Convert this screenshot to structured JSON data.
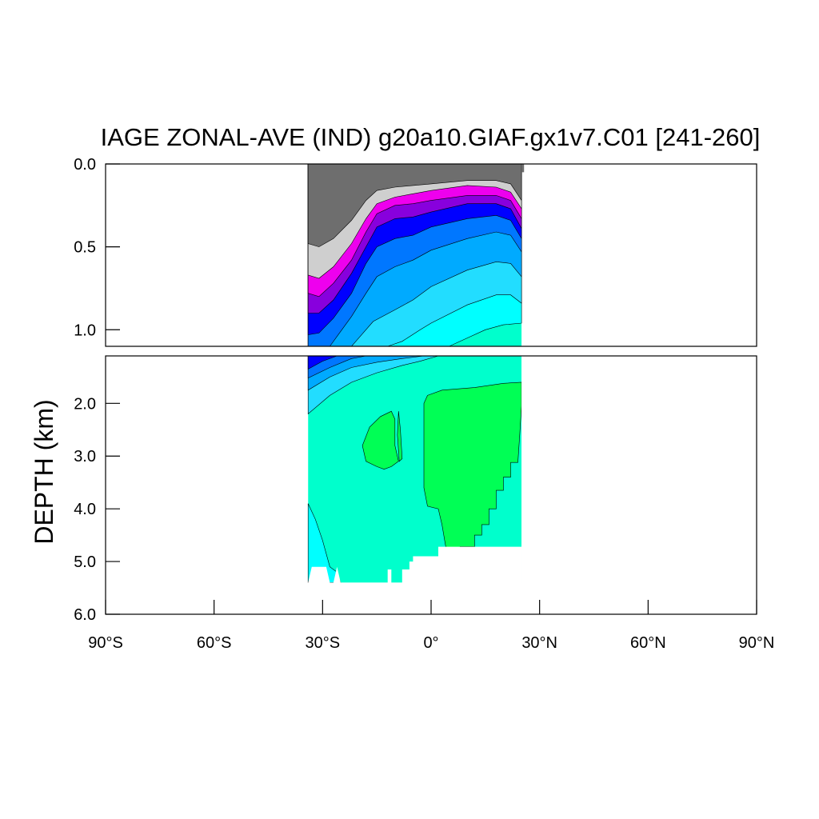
{
  "chart_data": {
    "type": "contour",
    "title": "IAGE ZONAL-AVE (IND) g20a10.GIAF.gx1v7.C01 [241-260]",
    "ylabel": "DEPTH (km)",
    "xlabel": "",
    "xlim": [
      -90,
      90
    ],
    "ylim_top_panel": [
      0.0,
      1.1
    ],
    "ylim_bottom_panel": [
      1.1,
      6.0
    ],
    "y_inverted": true,
    "x_ticks": [
      {
        "value": -90,
        "label": "90°S"
      },
      {
        "value": -60,
        "label": "60°S"
      },
      {
        "value": -30,
        "label": "30°S"
      },
      {
        "value": 0,
        "label": "0°"
      },
      {
        "value": 30,
        "label": "30°N"
      },
      {
        "value": 60,
        "label": "60°N"
      },
      {
        "value": 90,
        "label": "90°N"
      }
    ],
    "y_ticks_top": [
      {
        "value": 0.0,
        "label": "0.0"
      },
      {
        "value": 0.5,
        "label": "0.5"
      },
      {
        "value": 1.0,
        "label": "1.0"
      }
    ],
    "y_ticks_bottom": [
      {
        "value": 2.0,
        "label": "2.0"
      },
      {
        "value": 3.0,
        "label": "3.0"
      },
      {
        "value": 4.0,
        "label": "4.0"
      },
      {
        "value": 5.0,
        "label": "5.0"
      },
      {
        "value": 6.0,
        "label": "6.0"
      }
    ],
    "data_extent_lat": [
      -34,
      25
    ],
    "colors": {
      "level_1": "#6e6e6e",
      "level_2": "#cfcfcf",
      "level_3": "#ee00ee",
      "level_4": "#8800dd",
      "level_5": "#0000ff",
      "level_6": "#0077ff",
      "level_7": "#00aaff",
      "level_8": "#22ddff",
      "level_9": "#00ffff",
      "level_10": "#00ffcc",
      "level_11": "#00ff55"
    },
    "top_bands": [
      {
        "level": "level_1",
        "boundary": [
          [
            -34,
            0.48
          ],
          [
            -31,
            0.5
          ],
          [
            -27,
            0.45
          ],
          [
            -22,
            0.34
          ],
          [
            -18,
            0.22
          ],
          [
            -15,
            0.16
          ],
          [
            -10,
            0.14
          ],
          [
            -5,
            0.13
          ],
          [
            0,
            0.12
          ],
          [
            10,
            0.1
          ],
          [
            18,
            0.1
          ],
          [
            22,
            0.12
          ],
          [
            25,
            0.22
          ]
        ]
      },
      {
        "level": "level_2",
        "boundary": [
          [
            -34,
            0.67
          ],
          [
            -31,
            0.69
          ],
          [
            -27,
            0.62
          ],
          [
            -22,
            0.48
          ],
          [
            -18,
            0.33
          ],
          [
            -15,
            0.24
          ],
          [
            -10,
            0.2
          ],
          [
            -5,
            0.18
          ],
          [
            0,
            0.16
          ],
          [
            10,
            0.13
          ],
          [
            18,
            0.14
          ],
          [
            22,
            0.17
          ],
          [
            25,
            0.27
          ]
        ]
      },
      {
        "level": "level_3",
        "boundary": [
          [
            -34,
            0.78
          ],
          [
            -31,
            0.8
          ],
          [
            -27,
            0.72
          ],
          [
            -22,
            0.58
          ],
          [
            -18,
            0.41
          ],
          [
            -15,
            0.3
          ],
          [
            -10,
            0.25
          ],
          [
            -5,
            0.24
          ],
          [
            0,
            0.22
          ],
          [
            10,
            0.19
          ],
          [
            18,
            0.19
          ],
          [
            22,
            0.22
          ],
          [
            25,
            0.33
          ]
        ]
      },
      {
        "level": "level_4",
        "boundary": [
          [
            -34,
            0.9
          ],
          [
            -31,
            0.9
          ],
          [
            -27,
            0.82
          ],
          [
            -22,
            0.66
          ],
          [
            -18,
            0.5
          ],
          [
            -15,
            0.38
          ],
          [
            -10,
            0.33
          ],
          [
            -5,
            0.32
          ],
          [
            0,
            0.29
          ],
          [
            10,
            0.24
          ],
          [
            18,
            0.24
          ],
          [
            22,
            0.27
          ],
          [
            25,
            0.39
          ]
        ]
      },
      {
        "level": "level_5",
        "boundary": [
          [
            -34,
            1.03
          ],
          [
            -31,
            1.02
          ],
          [
            -27,
            0.93
          ],
          [
            -22,
            0.78
          ],
          [
            -18,
            0.6
          ],
          [
            -15,
            0.5
          ],
          [
            -10,
            0.45
          ],
          [
            -5,
            0.43
          ],
          [
            0,
            0.38
          ],
          [
            10,
            0.33
          ],
          [
            18,
            0.31
          ],
          [
            22,
            0.34
          ],
          [
            25,
            0.45
          ]
        ]
      },
      {
        "level": "level_6",
        "boundary": [
          [
            -34,
            1.1
          ],
          [
            -28,
            1.1
          ],
          [
            -26,
            1.04
          ],
          [
            -22,
            0.92
          ],
          [
            -18,
            0.78
          ],
          [
            -15,
            0.68
          ],
          [
            -10,
            0.62
          ],
          [
            -5,
            0.58
          ],
          [
            0,
            0.52
          ],
          [
            10,
            0.45
          ],
          [
            18,
            0.41
          ],
          [
            22,
            0.43
          ],
          [
            25,
            0.53
          ]
        ]
      },
      {
        "level": "level_7",
        "boundary": [
          [
            -34,
            1.1
          ],
          [
            -22,
            1.1
          ],
          [
            -20,
            1.05
          ],
          [
            -16,
            0.95
          ],
          [
            -10,
            0.88
          ],
          [
            -5,
            0.82
          ],
          [
            0,
            0.74
          ],
          [
            10,
            0.64
          ],
          [
            18,
            0.59
          ],
          [
            22,
            0.6
          ],
          [
            25,
            0.68
          ]
        ]
      },
      {
        "level": "level_8",
        "boundary": [
          [
            -34,
            1.1
          ],
          [
            -12,
            1.1
          ],
          [
            -8,
            1.07
          ],
          [
            -3,
            1.0
          ],
          [
            0,
            0.96
          ],
          [
            10,
            0.85
          ],
          [
            18,
            0.79
          ],
          [
            22,
            0.79
          ],
          [
            25,
            0.84
          ]
        ]
      },
      {
        "level": "level_9",
        "boundary": [
          [
            -34,
            1.1
          ],
          [
            5,
            1.1
          ],
          [
            10,
            1.05
          ],
          [
            15,
            1.0
          ],
          [
            20,
            0.97
          ],
          [
            25,
            0.96
          ]
        ]
      }
    ],
    "bottom_regions": [
      {
        "level": "level_11",
        "name": "core-east",
        "outline": [
          [
            -1,
            1.85
          ],
          [
            3,
            1.75
          ],
          [
            12,
            1.7
          ],
          [
            20,
            1.62
          ],
          [
            25,
            1.6
          ],
          [
            25,
            2.05
          ],
          [
            24.5,
            2.6
          ],
          [
            24,
            3.12
          ],
          [
            22,
            3.12
          ],
          [
            22,
            3.4
          ],
          [
            20,
            3.4
          ],
          [
            20,
            3.65
          ],
          [
            18,
            3.65
          ],
          [
            18,
            4.0
          ],
          [
            16,
            4.0
          ],
          [
            16,
            4.3
          ],
          [
            14,
            4.3
          ],
          [
            14,
            4.5
          ],
          [
            12,
            4.5
          ],
          [
            12,
            4.72
          ],
          [
            8,
            4.72
          ],
          [
            8,
            4.9
          ],
          [
            5,
            4.9
          ],
          [
            4,
            4.7
          ],
          [
            3,
            4.3
          ],
          [
            2,
            4.0
          ],
          [
            -1,
            3.95
          ],
          [
            -2,
            3.6
          ],
          [
            -2,
            2.5
          ],
          [
            -2,
            2.0
          ]
        ]
      },
      {
        "level": "level_11",
        "name": "core-west",
        "outline": [
          [
            -19,
            2.8
          ],
          [
            -17,
            2.45
          ],
          [
            -14,
            2.25
          ],
          [
            -11,
            2.15
          ],
          [
            -10,
            2.3
          ],
          [
            -10,
            2.8
          ],
          [
            -9,
            3.1
          ],
          [
            -11,
            3.2
          ],
          [
            -13,
            3.25
          ],
          [
            -15,
            3.2
          ],
          [
            -18,
            3.1
          ]
        ]
      },
      {
        "level": "level_11",
        "name": "core-sliver",
        "outline": [
          [
            -9,
            2.15
          ],
          [
            -8.5,
            2.5
          ],
          [
            -8,
            3.05
          ],
          [
            -8.8,
            3.1
          ],
          [
            -9.3,
            2.6
          ]
        ]
      }
    ],
    "bottom_shallow_bands": [
      {
        "level": "level_5",
        "boundary": [
          [
            -34,
            1.35
          ],
          [
            -30,
            1.2
          ],
          [
            -26,
            1.1
          ]
        ]
      },
      {
        "level": "level_6",
        "boundary": [
          [
            -34,
            1.52
          ],
          [
            -28,
            1.32
          ],
          [
            -22,
            1.15
          ],
          [
            -18,
            1.1
          ]
        ]
      },
      {
        "level": "level_7",
        "boundary": [
          [
            -34,
            1.75
          ],
          [
            -28,
            1.5
          ],
          [
            -22,
            1.32
          ],
          [
            -15,
            1.22
          ],
          [
            -8,
            1.15
          ],
          [
            -2,
            1.1
          ]
        ]
      },
      {
        "level": "level_8",
        "boundary": [
          [
            -34,
            2.2
          ],
          [
            -28,
            1.85
          ],
          [
            -22,
            1.6
          ],
          [
            -15,
            1.42
          ],
          [
            -8,
            1.28
          ],
          [
            -3,
            1.2
          ],
          [
            2,
            1.1
          ]
        ]
      }
    ],
    "bottom_deep_region": {
      "level": "level_9",
      "outline": [
        [
          -34,
          3.9
        ],
        [
          -32,
          4.2
        ],
        [
          -30,
          4.6
        ],
        [
          -28,
          5.1
        ],
        [
          -26,
          5.2
        ],
        [
          -25,
          5.4
        ],
        [
          -34,
          5.4
        ]
      ]
    },
    "seafloor_steps": [
      [
        -34,
        5.4
      ],
      [
        -33,
        5.1
      ],
      [
        -29,
        5.1
      ],
      [
        -28,
        5.4
      ],
      [
        -27,
        5.4
      ],
      [
        -26,
        5.1
      ],
      [
        -25,
        5.4
      ],
      [
        -12,
        5.4
      ],
      [
        -12,
        5.15
      ],
      [
        -11,
        5.15
      ],
      [
        -11,
        5.4
      ],
      [
        -8,
        5.4
      ],
      [
        -8,
        5.15
      ],
      [
        -6,
        5.15
      ],
      [
        -6,
        5.0
      ],
      [
        -5,
        5.0
      ],
      [
        -5,
        4.9
      ],
      [
        2,
        4.9
      ],
      [
        2,
        4.72
      ]
    ]
  }
}
